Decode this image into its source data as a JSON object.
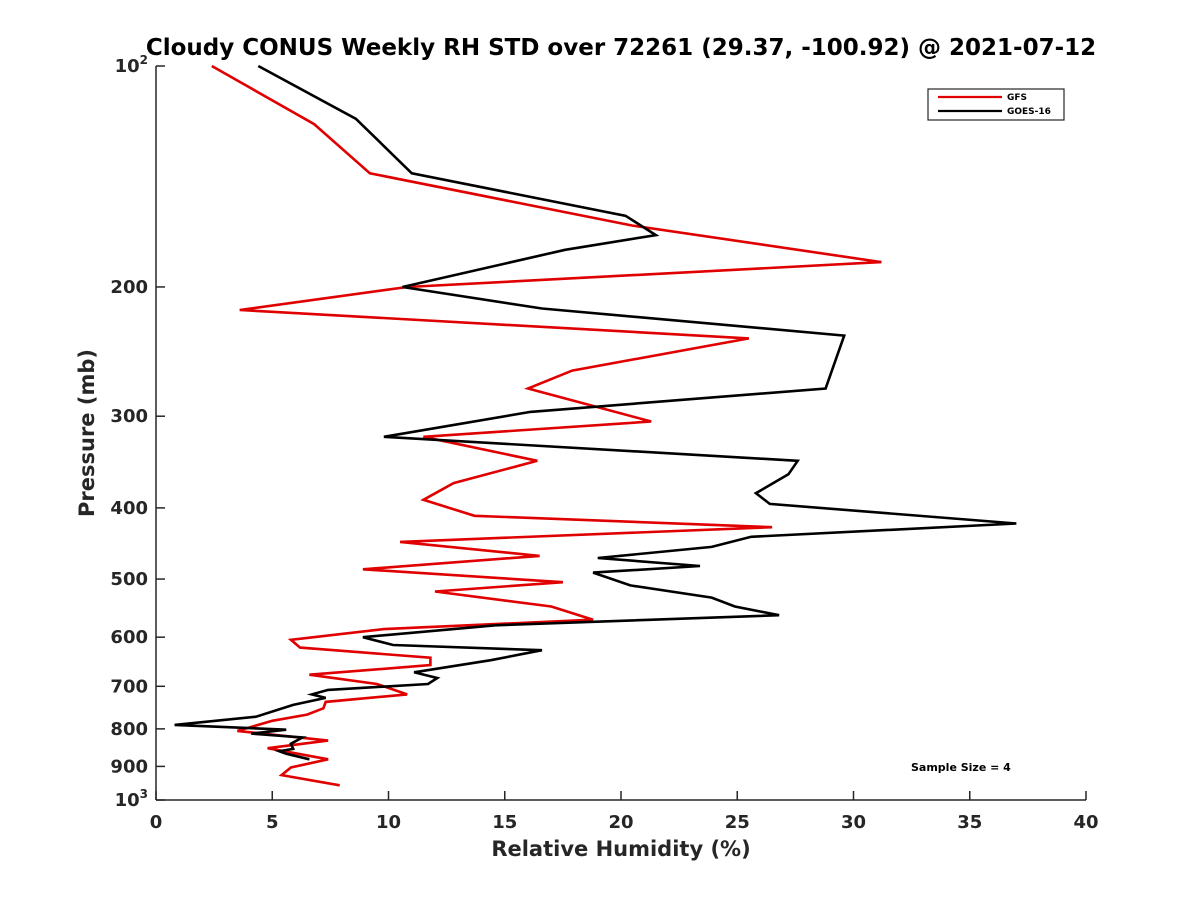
{
  "chart_data": {
    "type": "line",
    "title": "Cloudy CONUS Weekly RH STD over 72261 (29.37, -100.92) @ 2021-07-12",
    "xlabel": "Relative Humidity (%)",
    "ylabel": "Pressure (mb)",
    "xlim": [
      0,
      40
    ],
    "ylim": [
      100,
      1000
    ],
    "y_scale": "log",
    "y_reversed": true,
    "grid": false,
    "legend_position": "top-right",
    "x_ticks": [
      0,
      5,
      10,
      15,
      20,
      25,
      30,
      35,
      40
    ],
    "x_tick_labels": [
      "0",
      "5",
      "10",
      "15",
      "20",
      "25",
      "30",
      "35",
      "40"
    ],
    "y_ticks": [
      100,
      200,
      300,
      400,
      500,
      600,
      700,
      800,
      900,
      1000
    ],
    "y_tick_labels": [
      {
        "base": "10",
        "sup": "2"
      },
      {
        "base": "200",
        "sup": ""
      },
      {
        "base": "300",
        "sup": ""
      },
      {
        "base": "400",
        "sup": ""
      },
      {
        "base": "500",
        "sup": ""
      },
      {
        "base": "600",
        "sup": ""
      },
      {
        "base": "700",
        "sup": ""
      },
      {
        "base": "800",
        "sup": ""
      },
      {
        "base": "900",
        "sup": ""
      },
      {
        "base": "10",
        "sup": "3"
      }
    ],
    "annotation": "Sample Size = 4",
    "series": [
      {
        "name": "GFS",
        "color": "#e00000",
        "points": [
          [
            2.4,
            100
          ],
          [
            6.8,
            120
          ],
          [
            9.2,
            140
          ],
          [
            20.5,
            165
          ],
          [
            31.2,
            185
          ],
          [
            10.8,
            200
          ],
          [
            3.6,
            215
          ],
          [
            25.5,
            235
          ],
          [
            17.9,
            260
          ],
          [
            16.0,
            275
          ],
          [
            21.3,
            305
          ],
          [
            11.5,
            320
          ],
          [
            16.4,
            345
          ],
          [
            12.8,
            370
          ],
          [
            11.5,
            390
          ],
          [
            13.7,
            410
          ],
          [
            26.5,
            425
          ],
          [
            10.5,
            445
          ],
          [
            16.5,
            465
          ],
          [
            8.9,
            485
          ],
          [
            17.5,
            505
          ],
          [
            12.0,
            520
          ],
          [
            17.0,
            545
          ],
          [
            18.8,
            568
          ],
          [
            9.8,
            585
          ],
          [
            5.8,
            605
          ],
          [
            6.2,
            620
          ],
          [
            11.8,
            640
          ],
          [
            11.8,
            655
          ],
          [
            6.6,
            675
          ],
          [
            9.5,
            695
          ],
          [
            10.8,
            718
          ],
          [
            7.3,
            735
          ],
          [
            7.2,
            750
          ],
          [
            6.5,
            765
          ],
          [
            5.0,
            780
          ],
          [
            3.5,
            805
          ],
          [
            7.4,
            830
          ],
          [
            4.8,
            850
          ],
          [
            7.4,
            880
          ],
          [
            5.8,
            903
          ],
          [
            5.4,
            925
          ],
          [
            7.9,
            955
          ]
        ]
      },
      {
        "name": "GOES-16",
        "color": "#000000",
        "points": [
          [
            4.4,
            100
          ],
          [
            8.6,
            118
          ],
          [
            11.0,
            140
          ],
          [
            20.2,
            160
          ],
          [
            21.5,
            170
          ],
          [
            17.6,
            178
          ],
          [
            10.6,
            200
          ],
          [
            16.6,
            214
          ],
          [
            29.6,
            233
          ],
          [
            28.8,
            275
          ],
          [
            16.1,
            296
          ],
          [
            9.8,
            320
          ],
          [
            27.6,
            345
          ],
          [
            27.2,
            360
          ],
          [
            25.8,
            382
          ],
          [
            26.4,
            395
          ],
          [
            37.0,
            420
          ],
          [
            25.6,
            438
          ],
          [
            23.9,
            452
          ],
          [
            19.0,
            468
          ],
          [
            23.4,
            480
          ],
          [
            18.8,
            490
          ],
          [
            20.4,
            510
          ],
          [
            23.9,
            530
          ],
          [
            24.9,
            545
          ],
          [
            26.8,
            560
          ],
          [
            14.6,
            578
          ],
          [
            8.9,
            600
          ],
          [
            10.2,
            615
          ],
          [
            16.6,
            625
          ],
          [
            14.4,
            645
          ],
          [
            11.1,
            670
          ],
          [
            12.1,
            682
          ],
          [
            11.7,
            695
          ],
          [
            7.4,
            708
          ],
          [
            6.7,
            718
          ],
          [
            7.3,
            726
          ],
          [
            5.9,
            742
          ],
          [
            4.3,
            770
          ],
          [
            0.8,
            790
          ],
          [
            5.6,
            802
          ],
          [
            4.1,
            812
          ],
          [
            6.3,
            822
          ],
          [
            5.8,
            838
          ],
          [
            5.9,
            852
          ],
          [
            5.3,
            858
          ],
          [
            5.6,
            865
          ],
          [
            6.6,
            880
          ]
        ]
      }
    ]
  }
}
